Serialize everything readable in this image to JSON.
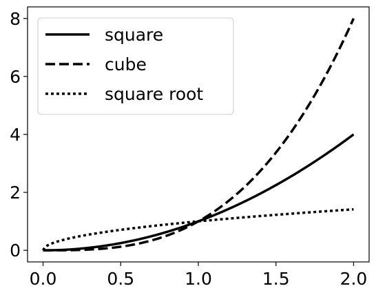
{
  "chart_data": {
    "type": "line",
    "title": "",
    "xlabel": "",
    "ylabel": "",
    "xlim": [
      -0.1,
      2.1
    ],
    "ylim": [
      -0.4,
      8.4
    ],
    "x_ticks": [
      0.0,
      0.5,
      1.0,
      1.5,
      2.0
    ],
    "x_tick_labels": [
      "0.0",
      "0.5",
      "1.0",
      "1.5",
      "2.0"
    ],
    "y_ticks": [
      0,
      2,
      4,
      6,
      8
    ],
    "y_tick_labels": [
      "0",
      "2",
      "4",
      "6",
      "8"
    ],
    "grid": false,
    "legend_position": "top-left",
    "line_color": "#000000",
    "x": [
      0.0,
      0.1,
      0.2,
      0.3,
      0.4,
      0.5,
      0.6,
      0.7,
      0.8,
      0.9,
      1.0,
      1.1,
      1.2,
      1.3,
      1.4,
      1.5,
      1.6,
      1.7,
      1.8,
      1.9,
      2.0
    ],
    "series": [
      {
        "name": "square",
        "style": "solid",
        "values": [
          0.0,
          0.01,
          0.04,
          0.09,
          0.16,
          0.25,
          0.36,
          0.49,
          0.64,
          0.81,
          1.0,
          1.21,
          1.44,
          1.69,
          1.96,
          2.25,
          2.56,
          2.89,
          3.24,
          3.61,
          4.0
        ]
      },
      {
        "name": "cube",
        "style": "dashed",
        "values": [
          0.0,
          0.001,
          0.008,
          0.027,
          0.064,
          0.125,
          0.216,
          0.343,
          0.512,
          0.729,
          1.0,
          1.331,
          1.728,
          2.197,
          2.744,
          3.375,
          4.096,
          4.913,
          5.832,
          6.859,
          8.0
        ]
      },
      {
        "name": "square root",
        "style": "dotted",
        "values": [
          0.0,
          0.316,
          0.447,
          0.548,
          0.632,
          0.707,
          0.775,
          0.837,
          0.894,
          0.949,
          1.0,
          1.049,
          1.095,
          1.14,
          1.183,
          1.225,
          1.265,
          1.304,
          1.342,
          1.378,
          1.414
        ]
      }
    ]
  }
}
